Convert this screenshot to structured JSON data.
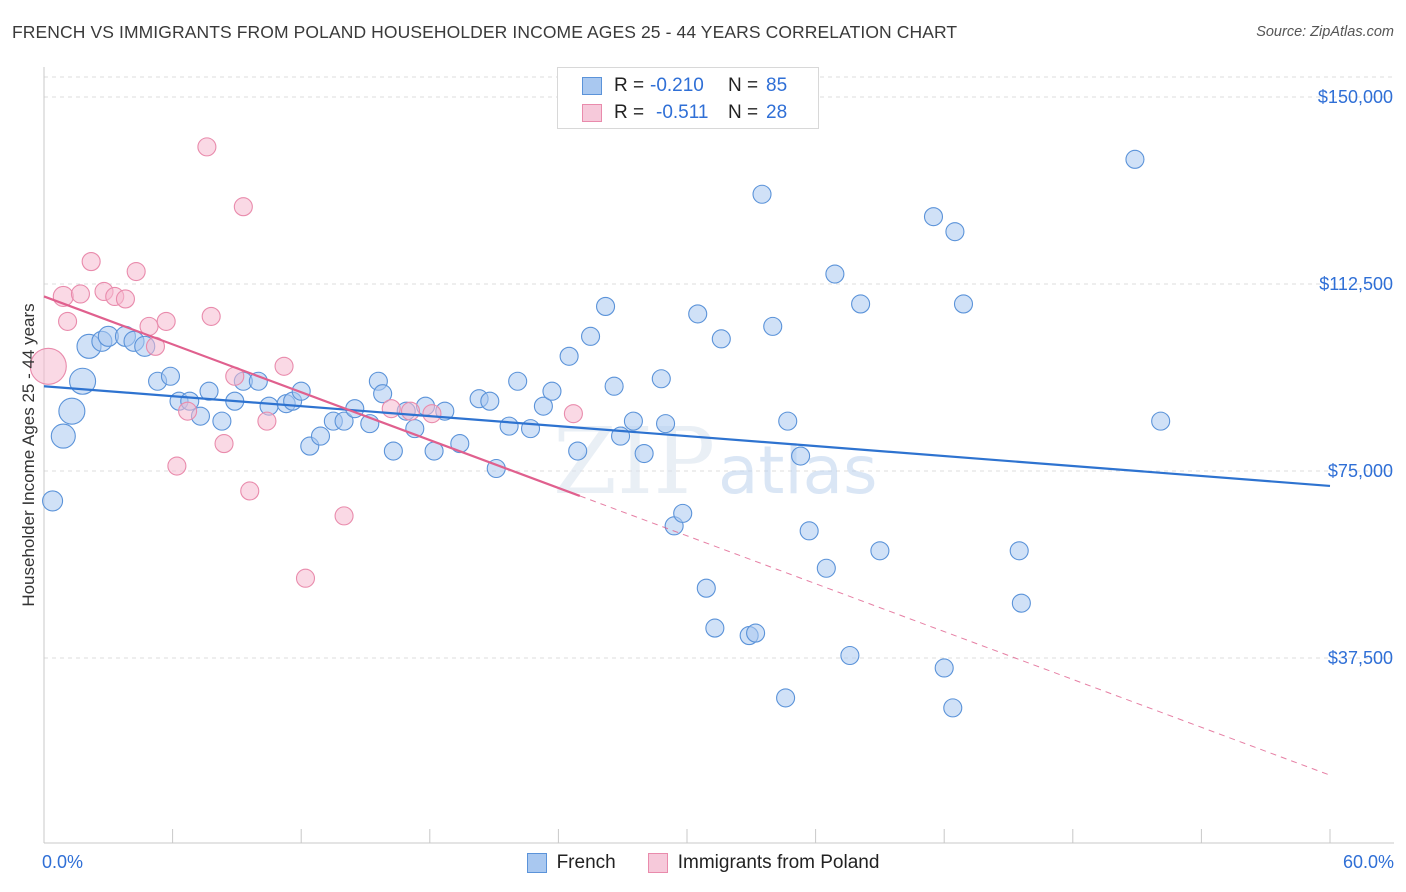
{
  "title": "FRENCH VS IMMIGRANTS FROM POLAND HOUSEHOLDER INCOME AGES 25 - 44 YEARS CORRELATION CHART",
  "source": "Source: ZipAtlas.com",
  "watermark": {
    "zip": "ZIP",
    "atlas": "atlas"
  },
  "colors": {
    "french_fill": "#a9c8f0",
    "french_stroke": "#5b93d9",
    "french_line": "#2e73d0",
    "poland_fill": "#f6b9cf",
    "poland_stroke": "#e98bac",
    "poland_line": "#e0608e",
    "axis_text": "#2f6fd6",
    "grid": "#dddddd"
  },
  "legend": {
    "rows": [
      {
        "r_label": "R =",
        "r_value": "-0.210",
        "n_label": "N =",
        "n_value": "85"
      },
      {
        "r_label": "R =",
        "r_value": "-0.511",
        "n_label": "N =",
        "n_value": "28"
      }
    ],
    "bottom": [
      "French",
      "Immigrants from Poland"
    ]
  },
  "chart_data": {
    "type": "scatter",
    "title": "FRENCH VS IMMIGRANTS FROM POLAND HOUSEHOLDER INCOME AGES 25 - 44 YEARS CORRELATION CHART",
    "xlabel": "",
    "ylabel": "Householder Income Ages 25 - 44 years",
    "xlim": [
      0,
      60
    ],
    "ylim": [
      0,
      157500
    ],
    "x_tick_labels": [
      "0.0%",
      "60.0%"
    ],
    "y_ticks": [
      37500,
      75000,
      112500,
      150000
    ],
    "y_tick_labels": [
      "$37,500",
      "$75,000",
      "$112,500",
      "$150,000"
    ],
    "grid": true,
    "series": [
      {
        "name": "French",
        "trend": {
          "x": [
            0,
            60
          ],
          "y": [
            92000,
            72000
          ],
          "style": "solid"
        },
        "points": [
          [
            0.4,
            69000,
            10
          ],
          [
            0.9,
            82000,
            12
          ],
          [
            1.3,
            87000,
            13
          ],
          [
            1.8,
            93000,
            13
          ],
          [
            2.1,
            100000,
            12
          ],
          [
            2.7,
            101000,
            10
          ],
          [
            3.0,
            102000,
            10
          ],
          [
            3.8,
            102000,
            10
          ],
          [
            4.2,
            101000,
            10
          ],
          [
            4.7,
            100000,
            10
          ],
          [
            5.3,
            93000,
            9
          ],
          [
            5.9,
            94000,
            9
          ],
          [
            6.3,
            89000,
            9
          ],
          [
            6.8,
            89000,
            9
          ],
          [
            7.3,
            86000,
            9
          ],
          [
            7.7,
            91000,
            9
          ],
          [
            8.3,
            85000,
            9
          ],
          [
            8.9,
            89000,
            9
          ],
          [
            9.3,
            93000,
            9
          ],
          [
            10.0,
            93000,
            9
          ],
          [
            10.5,
            88000,
            9
          ],
          [
            11.3,
            88500,
            9
          ],
          [
            11.6,
            89000,
            9
          ],
          [
            12.0,
            91000,
            9
          ],
          [
            12.4,
            80000,
            9
          ],
          [
            12.9,
            82000,
            9
          ],
          [
            13.5,
            85000,
            9
          ],
          [
            14.0,
            85000,
            9
          ],
          [
            14.5,
            87500,
            9
          ],
          [
            15.2,
            84500,
            9
          ],
          [
            15.6,
            93000,
            9
          ],
          [
            15.8,
            90500,
            9
          ],
          [
            16.3,
            79000,
            9
          ],
          [
            16.9,
            87000,
            9
          ],
          [
            17.3,
            83500,
            9
          ],
          [
            17.8,
            88000,
            9
          ],
          [
            18.2,
            79000,
            9
          ],
          [
            18.7,
            87000,
            9
          ],
          [
            19.4,
            80500,
            9
          ],
          [
            20.3,
            89500,
            9
          ],
          [
            20.8,
            89000,
            9
          ],
          [
            21.1,
            75500,
            9
          ],
          [
            21.7,
            84000,
            9
          ],
          [
            22.1,
            93000,
            9
          ],
          [
            22.7,
            83500,
            9
          ],
          [
            23.3,
            88000,
            9
          ],
          [
            23.7,
            91000,
            9
          ],
          [
            24.5,
            98000,
            9
          ],
          [
            24.9,
            79000,
            9
          ],
          [
            25.5,
            102000,
            9
          ],
          [
            26.2,
            108000,
            9
          ],
          [
            26.6,
            92000,
            9
          ],
          [
            26.9,
            82000,
            9
          ],
          [
            27.5,
            85000,
            9
          ],
          [
            28.0,
            78500,
            9
          ],
          [
            28.8,
            93500,
            9
          ],
          [
            29.0,
            84500,
            9
          ],
          [
            29.4,
            64000,
            9
          ],
          [
            29.8,
            66500,
            9
          ],
          [
            30.5,
            106500,
            9
          ],
          [
            30.9,
            51500,
            9
          ],
          [
            31.3,
            43500,
            9
          ],
          [
            31.6,
            101500,
            9
          ],
          [
            32.9,
            42000,
            9
          ],
          [
            33.2,
            42500,
            9
          ],
          [
            33.5,
            130500,
            9
          ],
          [
            34.0,
            104000,
            9
          ],
          [
            34.6,
            29500,
            9
          ],
          [
            34.7,
            85000,
            9
          ],
          [
            35.3,
            78000,
            9
          ],
          [
            35.7,
            63000,
            9
          ],
          [
            36.5,
            55500,
            9
          ],
          [
            36.9,
            114500,
            9
          ],
          [
            37.6,
            38000,
            9
          ],
          [
            38.1,
            108500,
            9
          ],
          [
            39.0,
            59000,
            9
          ],
          [
            41.5,
            126000,
            9
          ],
          [
            42.0,
            35500,
            9
          ],
          [
            42.4,
            27500,
            9
          ],
          [
            42.5,
            123000,
            9
          ],
          [
            42.9,
            108500,
            9
          ],
          [
            45.5,
            59000,
            9
          ],
          [
            45.6,
            48500,
            9
          ],
          [
            50.9,
            137500,
            9
          ],
          [
            52.1,
            85000,
            9
          ]
        ]
      },
      {
        "name": "Immigrants from Poland",
        "trend": {
          "x": [
            0,
            25
          ],
          "y": [
            110000,
            70000
          ],
          "style": "solid",
          "extension_x": [
            25,
            60
          ],
          "extension_y": [
            70000,
            14000
          ],
          "extension_style": "dashed"
        },
        "points": [
          [
            0.2,
            96000,
            18
          ],
          [
            0.9,
            110000,
            10
          ],
          [
            1.1,
            105000,
            9
          ],
          [
            1.7,
            110500,
            9
          ],
          [
            2.2,
            117000,
            9
          ],
          [
            2.8,
            111000,
            9
          ],
          [
            3.3,
            110000,
            9
          ],
          [
            3.8,
            109500,
            9
          ],
          [
            4.3,
            115000,
            9
          ],
          [
            4.9,
            104000,
            9
          ],
          [
            5.2,
            100000,
            9
          ],
          [
            5.7,
            105000,
            9
          ],
          [
            6.2,
            76000,
            9
          ],
          [
            6.7,
            87000,
            9
          ],
          [
            7.6,
            140000,
            9
          ],
          [
            7.8,
            106000,
            9
          ],
          [
            8.4,
            80500,
            9
          ],
          [
            8.9,
            94000,
            9
          ],
          [
            9.3,
            128000,
            9
          ],
          [
            9.6,
            71000,
            9
          ],
          [
            10.4,
            85000,
            9
          ],
          [
            11.2,
            96000,
            9
          ],
          [
            12.2,
            53500,
            9
          ],
          [
            14.0,
            66000,
            9
          ],
          [
            16.2,
            87500,
            9
          ],
          [
            17.1,
            87000,
            9
          ],
          [
            18.1,
            86500,
            9
          ],
          [
            24.7,
            86500,
            9
          ]
        ]
      }
    ]
  }
}
